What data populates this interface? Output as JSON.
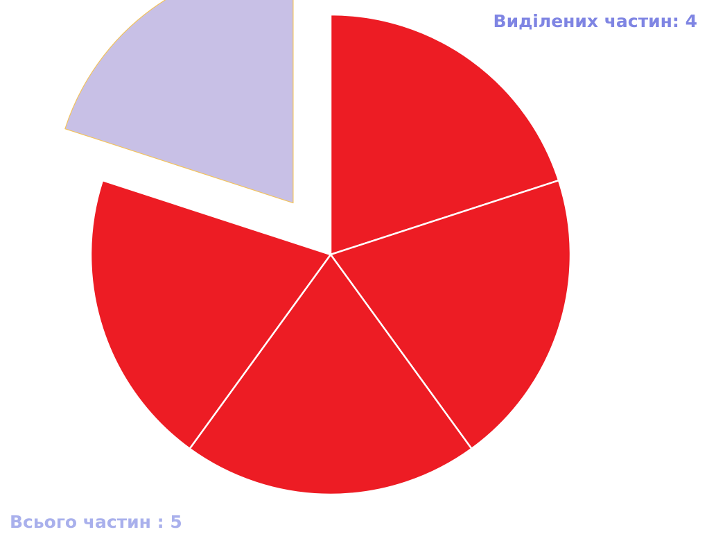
{
  "labels": {
    "selected_parts": "Виділених частин: 4",
    "total_parts": "Всього частин : 5"
  },
  "colors": {
    "selected_fill": "#ED1C24",
    "unselected_fill": "#C8C0E6",
    "unselected_stroke": "#F2C35E",
    "divider": "#FFFFFF",
    "selected_label": "#7F85E3",
    "total_label": "#A9B0EC"
  },
  "chart_data": {
    "type": "pie",
    "total_parts": 5,
    "selected_parts": 4,
    "values": [
      1,
      1,
      1,
      1,
      1
    ],
    "selected": [
      true,
      true,
      true,
      true,
      false
    ],
    "exploded": [
      false,
      false,
      false,
      false,
      true
    ],
    "start_angle_deg": -90
  }
}
